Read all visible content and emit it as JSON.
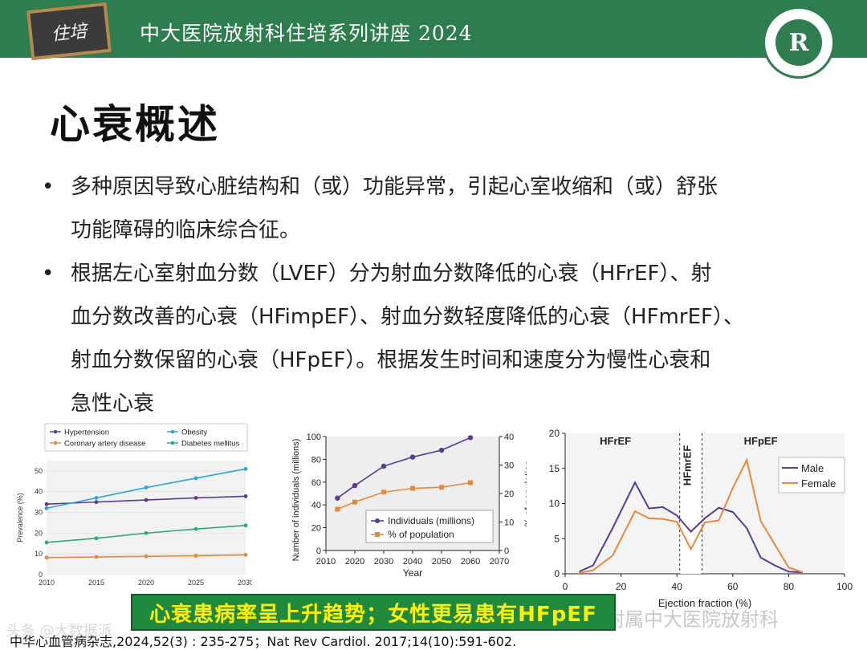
{
  "header": {
    "logo_text": "住培",
    "title": "中大医院放射科住培系列讲座 2024",
    "seal_letter": "R"
  },
  "page_title": "心衰概述",
  "bullets": [
    {
      "marker": "•",
      "lines": [
        "多种原因导致心脏结构和（或）功能异常，引起心室收缩和（或）舒张",
        "功能障碍的临床综合征。"
      ]
    },
    {
      "marker": "•",
      "lines": [
        "根据左心室射血分数（LVEF）分为射血分数降低的心衰（HFrEF）、射",
        "血分数改善的心衰（HFimpEF）、射血分数轻度降低的心衰（HFmrEF）、",
        "射血分数保留的心衰（HFpEF）。根据发生时间和速度分为慢性心衰和",
        "急性心衰"
      ]
    }
  ],
  "banner": "心衰患病率呈上升趋势；女性更易患有HFpEF",
  "watermark_right": "学附属中大医院放射科",
  "watermark_left": "头条 @大数据派",
  "citation": "中华心血管病杂志,2024,52(3) : 235-275；Nat Rev Cardiol. 2017;14(10):591-602.",
  "chart_data": [
    {
      "type": "line",
      "ylabel": "Prevalence (%)",
      "x": [
        2010,
        2015,
        2020,
        2025,
        2030
      ],
      "x_ticks": [
        "2010",
        "2015",
        "2020",
        "2025",
        "2030"
      ],
      "y_ticks": [
        "0",
        "10",
        "20",
        "30",
        "40",
        "50"
      ],
      "ylim": [
        0,
        55
      ],
      "legend_position": "top",
      "series": [
        {
          "name": "Hypertension",
          "color": "#5b3a93",
          "values": [
            34,
            35,
            36,
            37,
            37.8
          ]
        },
        {
          "name": "Obesity",
          "color": "#2aa5d8",
          "values": [
            32,
            37,
            42,
            46.5,
            51
          ]
        },
        {
          "name": "Coronary artery disease",
          "color": "#e8883a",
          "values": [
            8.2,
            8.5,
            8.8,
            9.1,
            9.5
          ]
        },
        {
          "name": "Diabetes mellitus",
          "color": "#2eaa6e",
          "values": [
            15.5,
            17.5,
            20,
            22,
            23.7
          ]
        }
      ]
    },
    {
      "type": "line",
      "xlabel": "Year",
      "ylabel": "Number of individuals (millions)",
      "y2label": "% of population",
      "x_ticks": [
        "2010",
        "2020",
        "2030",
        "2040",
        "2050",
        "2060",
        "2070"
      ],
      "y_ticks": [
        "0",
        "20",
        "40",
        "60",
        "80",
        "100"
      ],
      "y2_ticks": [
        "0",
        "10",
        "20",
        "30",
        "40"
      ],
      "ylim": [
        0,
        100
      ],
      "y2lim": [
        0,
        40
      ],
      "legend_position": "bottom-right",
      "series": [
        {
          "name": "Individuals (millions)",
          "color": "#5b3a93",
          "axis": "left",
          "x": [
            2014,
            2020,
            2030,
            2040,
            2050,
            2060
          ],
          "values": [
            46,
            57,
            74,
            82,
            88,
            99
          ]
        },
        {
          "name": "% of population",
          "color": "#e8883a",
          "axis": "right",
          "x": [
            2014,
            2020,
            2030,
            2040,
            2050,
            2060
          ],
          "values": [
            14.5,
            17,
            20.5,
            21.8,
            22.2,
            23.8
          ]
        }
      ]
    },
    {
      "type": "line",
      "xlabel": "Ejection fraction (%)",
      "x_ticks": [
        "0",
        "20",
        "40",
        "60",
        "80",
        "100"
      ],
      "y_ticks": [
        "0",
        "5",
        "10",
        "15",
        "20"
      ],
      "xlim": [
        0,
        100
      ],
      "ylim": [
        0,
        20
      ],
      "regions": [
        "HFrEF",
        "HFmrEF",
        "HFpEF"
      ],
      "region_bounds": [
        41,
        49
      ],
      "legend_position": "top-right",
      "series": [
        {
          "name": "Male",
          "color": "#5b3a93",
          "x": [
            5,
            10,
            17,
            25,
            30,
            35,
            40,
            45,
            50,
            55,
            60,
            65,
            70,
            75,
            80,
            85
          ],
          "values": [
            0.3,
            1.2,
            6.5,
            13,
            9.3,
            9.5,
            8.3,
            6,
            7.9,
            9.4,
            8.8,
            6.5,
            2.3,
            1.2,
            0.3,
            0.2
          ]
        },
        {
          "name": "Female",
          "color": "#e8883a",
          "x": [
            5,
            10,
            17,
            25,
            30,
            35,
            40,
            45,
            50,
            55,
            60,
            65,
            70,
            75,
            80,
            85
          ],
          "values": [
            0.1,
            0.5,
            2.6,
            8.9,
            7.9,
            7.8,
            7.4,
            3.5,
            7.3,
            7.6,
            12.2,
            16.2,
            7.5,
            4.2,
            0.9,
            0.2
          ]
        }
      ]
    }
  ]
}
